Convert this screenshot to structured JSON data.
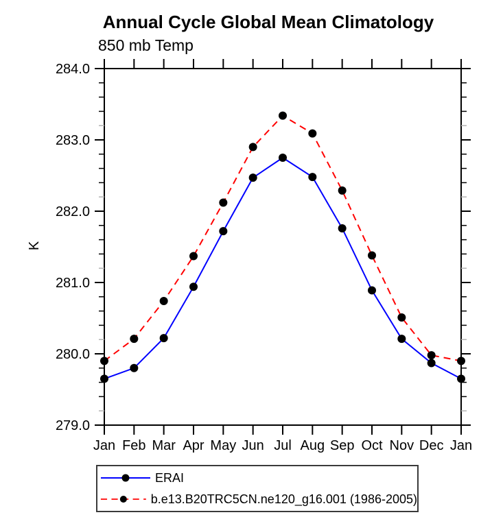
{
  "chart_data": {
    "type": "line",
    "title": "Annual Cycle Global Mean Climatology",
    "subtitle": "850 mb Temp",
    "ylabel": "K",
    "xlabel": "",
    "categories": [
      "Jan",
      "Feb",
      "Mar",
      "Apr",
      "May",
      "Jun",
      "Jul",
      "Aug",
      "Sep",
      "Oct",
      "Nov",
      "Dec",
      "Jan"
    ],
    "ylim": [
      279.0,
      284.0
    ],
    "ytick_interval": 1.0,
    "yminor_interval": 0.2,
    "ytick_label_format": "one-decimal",
    "grid": false,
    "frame": "box-with-outward-ticks",
    "legend_position": "bottom-left",
    "marker": "filled-circle",
    "marker_color": "#000000",
    "series": [
      {
        "name": "ERAI",
        "color": "#0000ff",
        "style": "solid",
        "values": [
          279.65,
          279.8,
          280.22,
          280.94,
          281.72,
          282.47,
          282.75,
          282.48,
          281.76,
          280.89,
          280.21,
          279.87,
          279.65
        ]
      },
      {
        "name": "b.e13.B20TRC5CN.ne120_g16.001 (1986-2005)",
        "color": "#ff0000",
        "style": "dashed",
        "values": [
          279.9,
          280.21,
          280.74,
          281.37,
          282.12,
          282.9,
          283.34,
          283.09,
          282.29,
          281.38,
          280.51,
          279.98,
          279.9
        ]
      }
    ]
  }
}
